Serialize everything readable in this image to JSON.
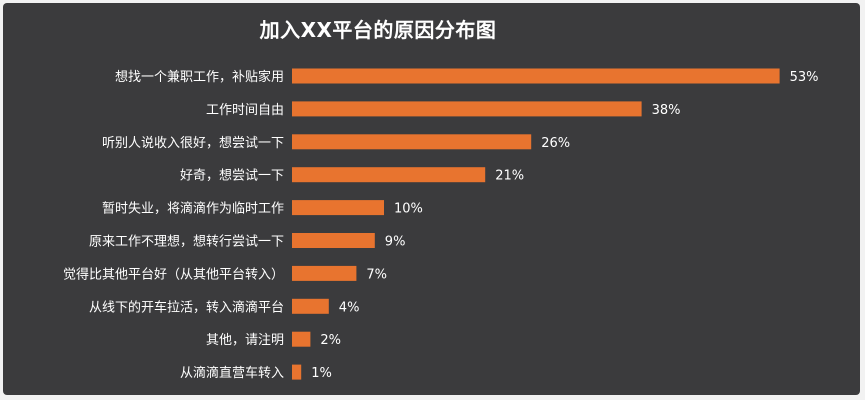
{
  "chart_data": {
    "type": "bar",
    "orientation": "horizontal",
    "title": "加入XX平台的原因分布图",
    "categories": [
      "想找一个兼职工作，补贴家用",
      "工作时间自由",
      "听别人说收入很好，想尝试一下",
      "好奇，想尝试一下",
      "暂时失业，将滴滴作为临时工作",
      "原来工作不理想，想转行尝试一下",
      "觉得比其他平台好（从其他平台转入）",
      "从线下的开车拉活，转入滴滴平台",
      "其他，请注明",
      "从滴滴直营车转入"
    ],
    "values": [
      53,
      38,
      26,
      21,
      10,
      9,
      7,
      4,
      2,
      1
    ],
    "value_suffix": "%",
    "bar_color": "#e8742f",
    "background_color": "#3b3b3d",
    "text_color": "#ffffff",
    "grid": false,
    "legend": "none"
  }
}
